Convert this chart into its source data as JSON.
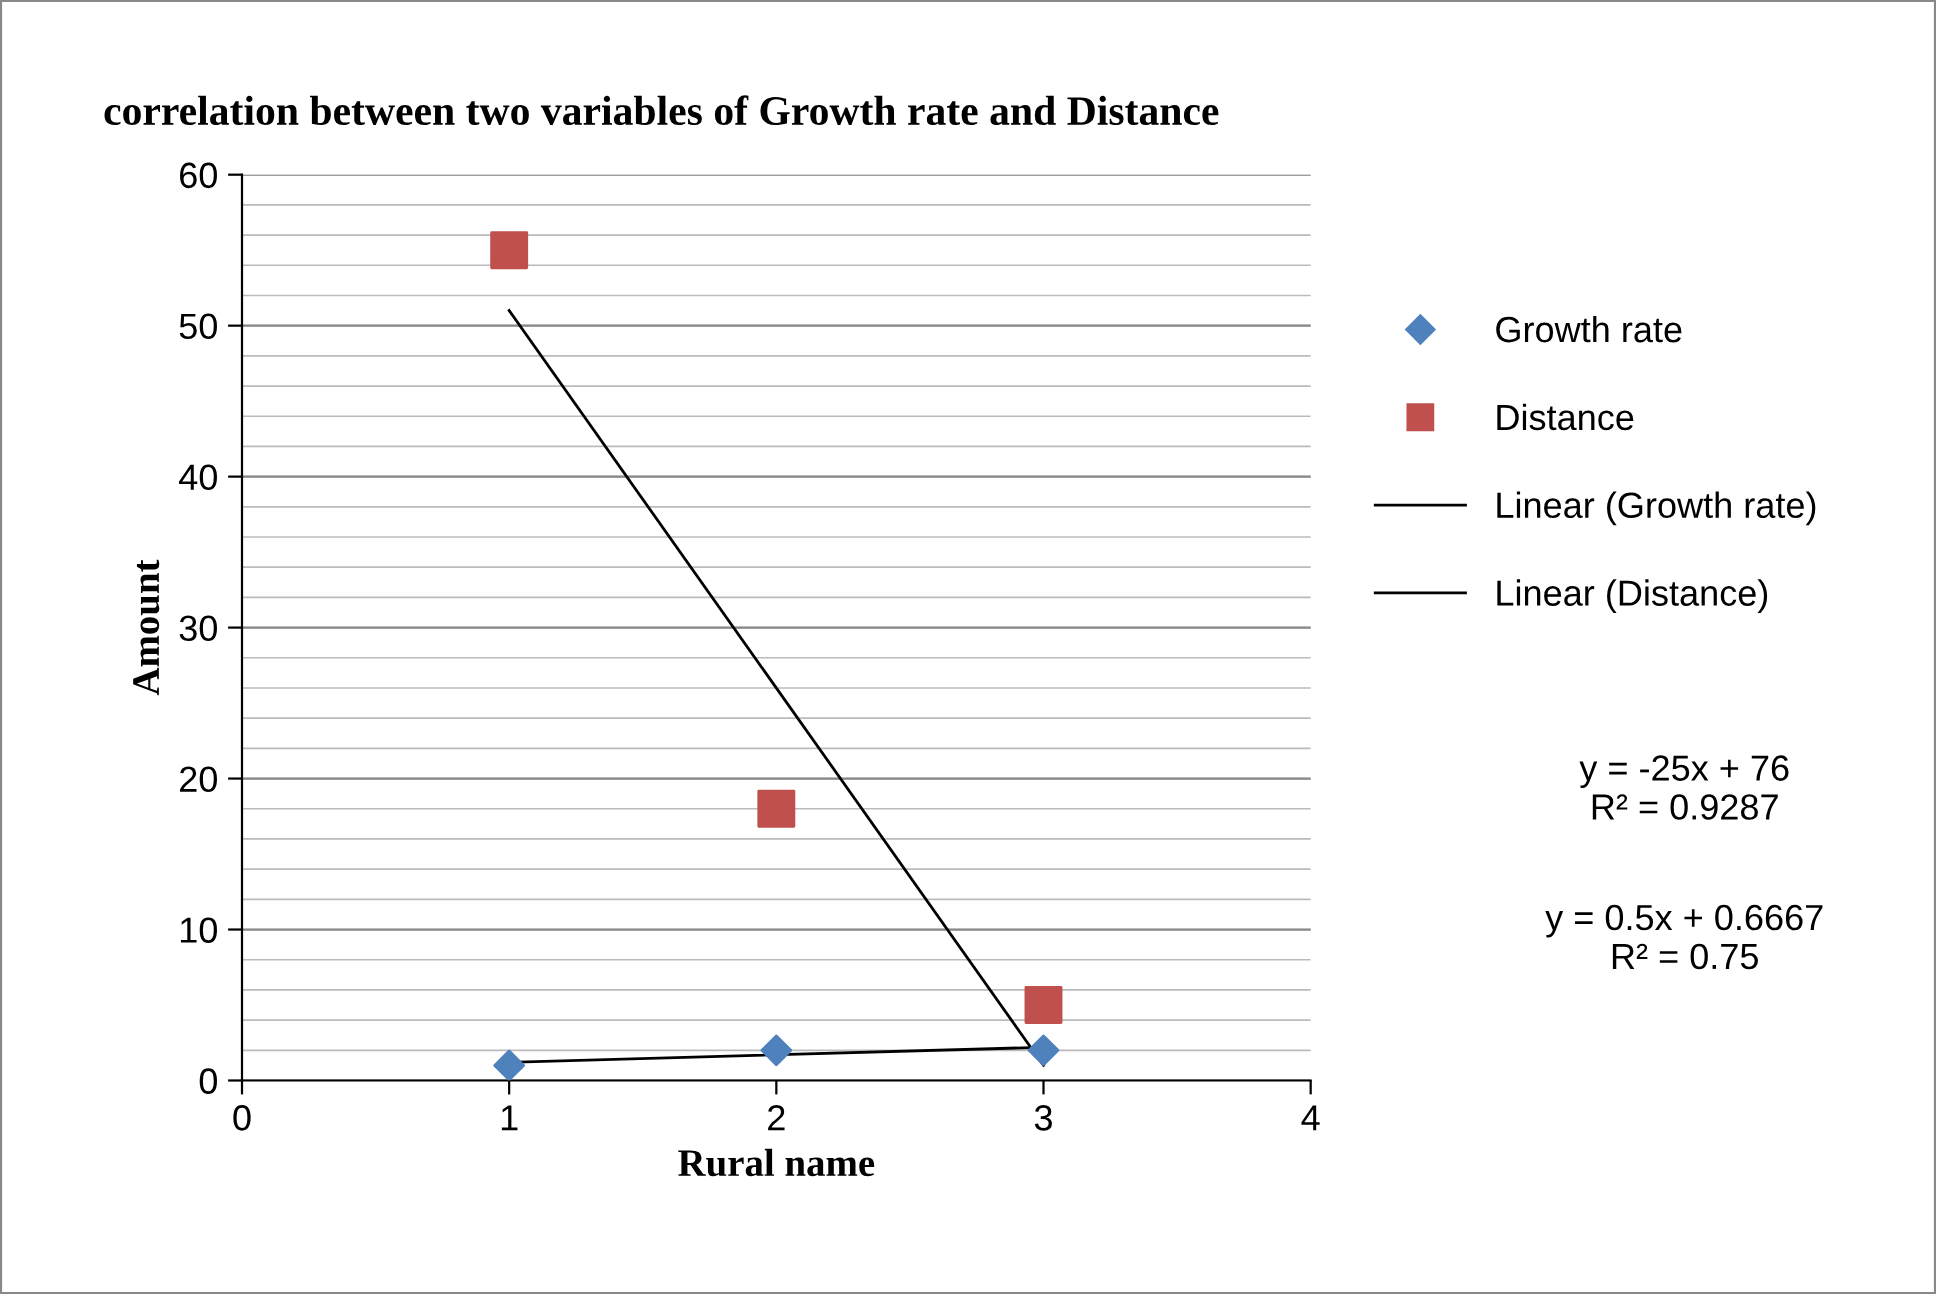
{
  "chart_data": {
    "type": "scatter",
    "title": "correlation between two variables of Growth rate and Distance",
    "xlabel": "Rural name",
    "ylabel": "Amount",
    "xlim": [
      0,
      4
    ],
    "xticks": [
      0,
      1,
      2,
      3,
      4
    ],
    "ylim": [
      0,
      60
    ],
    "yticks": [
      0,
      10,
      20,
      30,
      40,
      50,
      60
    ],
    "grid": "y",
    "legend": "right",
    "series": [
      {
        "name": "Growth rate",
        "marker": "diamond",
        "color": "#4f81bd",
        "x": [
          1,
          2,
          3
        ],
        "values": [
          1,
          2,
          2
        ]
      },
      {
        "name": "Distance",
        "marker": "square",
        "color": "#c0504d",
        "x": [
          1,
          2,
          3
        ],
        "values": [
          55,
          18,
          5
        ]
      },
      {
        "name": "Linear (Growth rate)",
        "type": "line",
        "marker": "none",
        "color": "#000000",
        "x": [
          1,
          3
        ],
        "values": [
          1.2,
          2.2
        ]
      },
      {
        "name": "Linear (Distance)",
        "type": "line",
        "marker": "none",
        "color": "#000000",
        "x": [
          1,
          3
        ],
        "values": [
          51,
          1
        ]
      }
    ],
    "annotations": [
      "y = -25x + 76\nR² = 0.9287",
      "y = 0.5x + 0.6667\nR² = 0.75"
    ]
  }
}
